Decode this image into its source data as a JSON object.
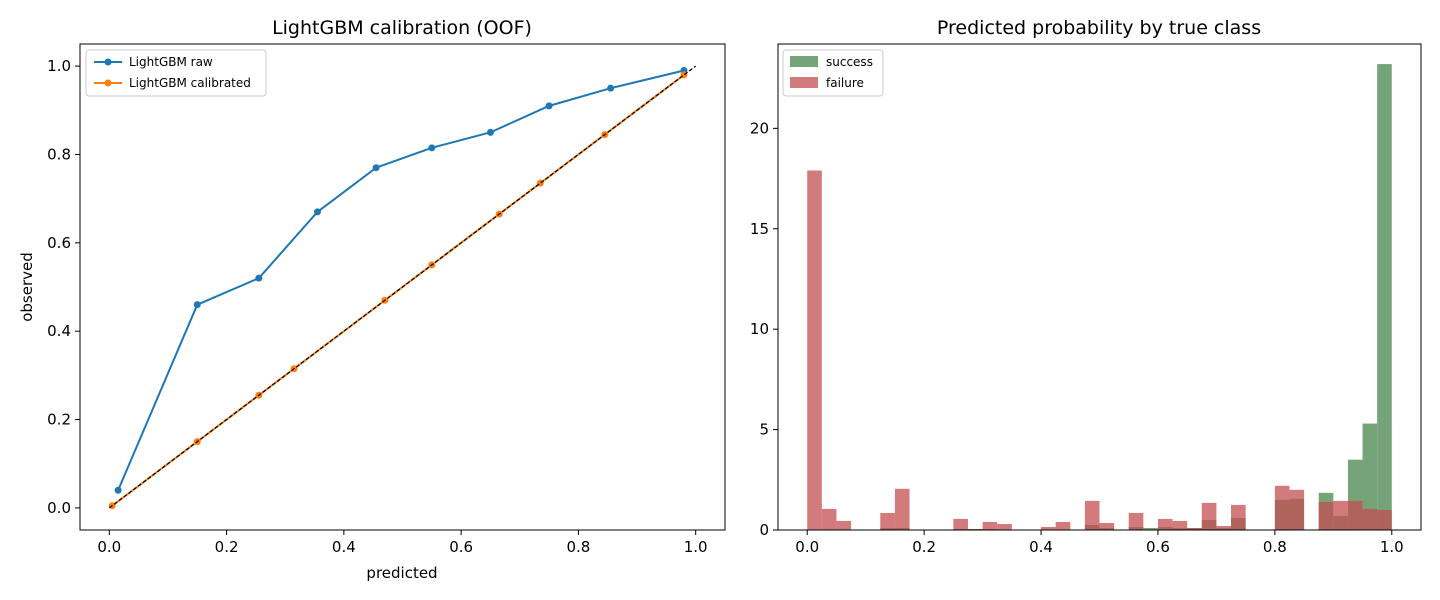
{
  "chart_data": [
    {
      "type": "line",
      "title": "LightGBM calibration (OOF)",
      "xlabel": "predicted",
      "ylabel": "observed",
      "xlim": [
        -0.05,
        1.05
      ],
      "ylim": [
        -0.05,
        1.05
      ],
      "xticks": [
        "0.0",
        "0.2",
        "0.4",
        "0.6",
        "0.8",
        "1.0"
      ],
      "yticks": [
        "0.0",
        "0.2",
        "0.4",
        "0.6",
        "0.8",
        "1.0"
      ],
      "grid": false,
      "legend_position": "top-left",
      "reference_line": {
        "x": [
          0,
          1
        ],
        "y": [
          0,
          1
        ],
        "color": "#000000",
        "style": "dashed"
      },
      "series": [
        {
          "name": "LightGBM raw",
          "color": "#1f77b4",
          "x": [
            0.015,
            0.15,
            0.255,
            0.355,
            0.455,
            0.55,
            0.65,
            0.75,
            0.855,
            0.98
          ],
          "y": [
            0.04,
            0.46,
            0.52,
            0.67,
            0.77,
            0.815,
            0.85,
            0.91,
            0.95,
            0.99
          ]
        },
        {
          "name": "LightGBM calibrated",
          "color": "#ff7f0e",
          "x": [
            0.005,
            0.15,
            0.255,
            0.315,
            0.47,
            0.55,
            0.665,
            0.735,
            0.845,
            0.98
          ],
          "y": [
            0.005,
            0.15,
            0.255,
            0.315,
            0.47,
            0.55,
            0.665,
            0.735,
            0.845,
            0.98
          ]
        }
      ]
    },
    {
      "type": "bar",
      "subtype": "histogram",
      "title": "Predicted probability by true class",
      "xlim": [
        -0.05,
        1.05
      ],
      "ylim": [
        0,
        24.2
      ],
      "xticks": [
        "0.0",
        "0.2",
        "0.4",
        "0.6",
        "0.8",
        "1.0"
      ],
      "yticks": [
        "0",
        "5",
        "10",
        "15",
        "20"
      ],
      "grid": false,
      "legend_position": "top-left",
      "bin_width": 0.025,
      "bin_start": 0,
      "series": [
        {
          "name": "success",
          "color": "#3a7d3e",
          "opacity": 0.7,
          "values": [
            0,
            0,
            0,
            0,
            0,
            0.1,
            0.1,
            0,
            0,
            0,
            0.05,
            0.05,
            0.05,
            0,
            0,
            0,
            0,
            0,
            0,
            0.25,
            0.1,
            0,
            0.15,
            0.1,
            0.15,
            0.1,
            0.1,
            0.5,
            0.1,
            0.6,
            0,
            0,
            1.5,
            1.55,
            0,
            1.85,
            0.7,
            3.5,
            5.3,
            23.2
          ]
        },
        {
          "name": "failure",
          "color": "#c44e52",
          "opacity": 0.75,
          "values": [
            17.9,
            1.05,
            0.45,
            0,
            0,
            0.85,
            2.05,
            0,
            0,
            0,
            0.55,
            0.05,
            0.4,
            0.3,
            0,
            0,
            0.15,
            0.4,
            0,
            1.45,
            0.35,
            0,
            0.85,
            0,
            0.55,
            0.45,
            0.1,
            1.35,
            0.2,
            1.25,
            0,
            0,
            2.2,
            2,
            0,
            1.4,
            1.45,
            1.45,
            1.05,
            1.0
          ]
        }
      ]
    }
  ]
}
